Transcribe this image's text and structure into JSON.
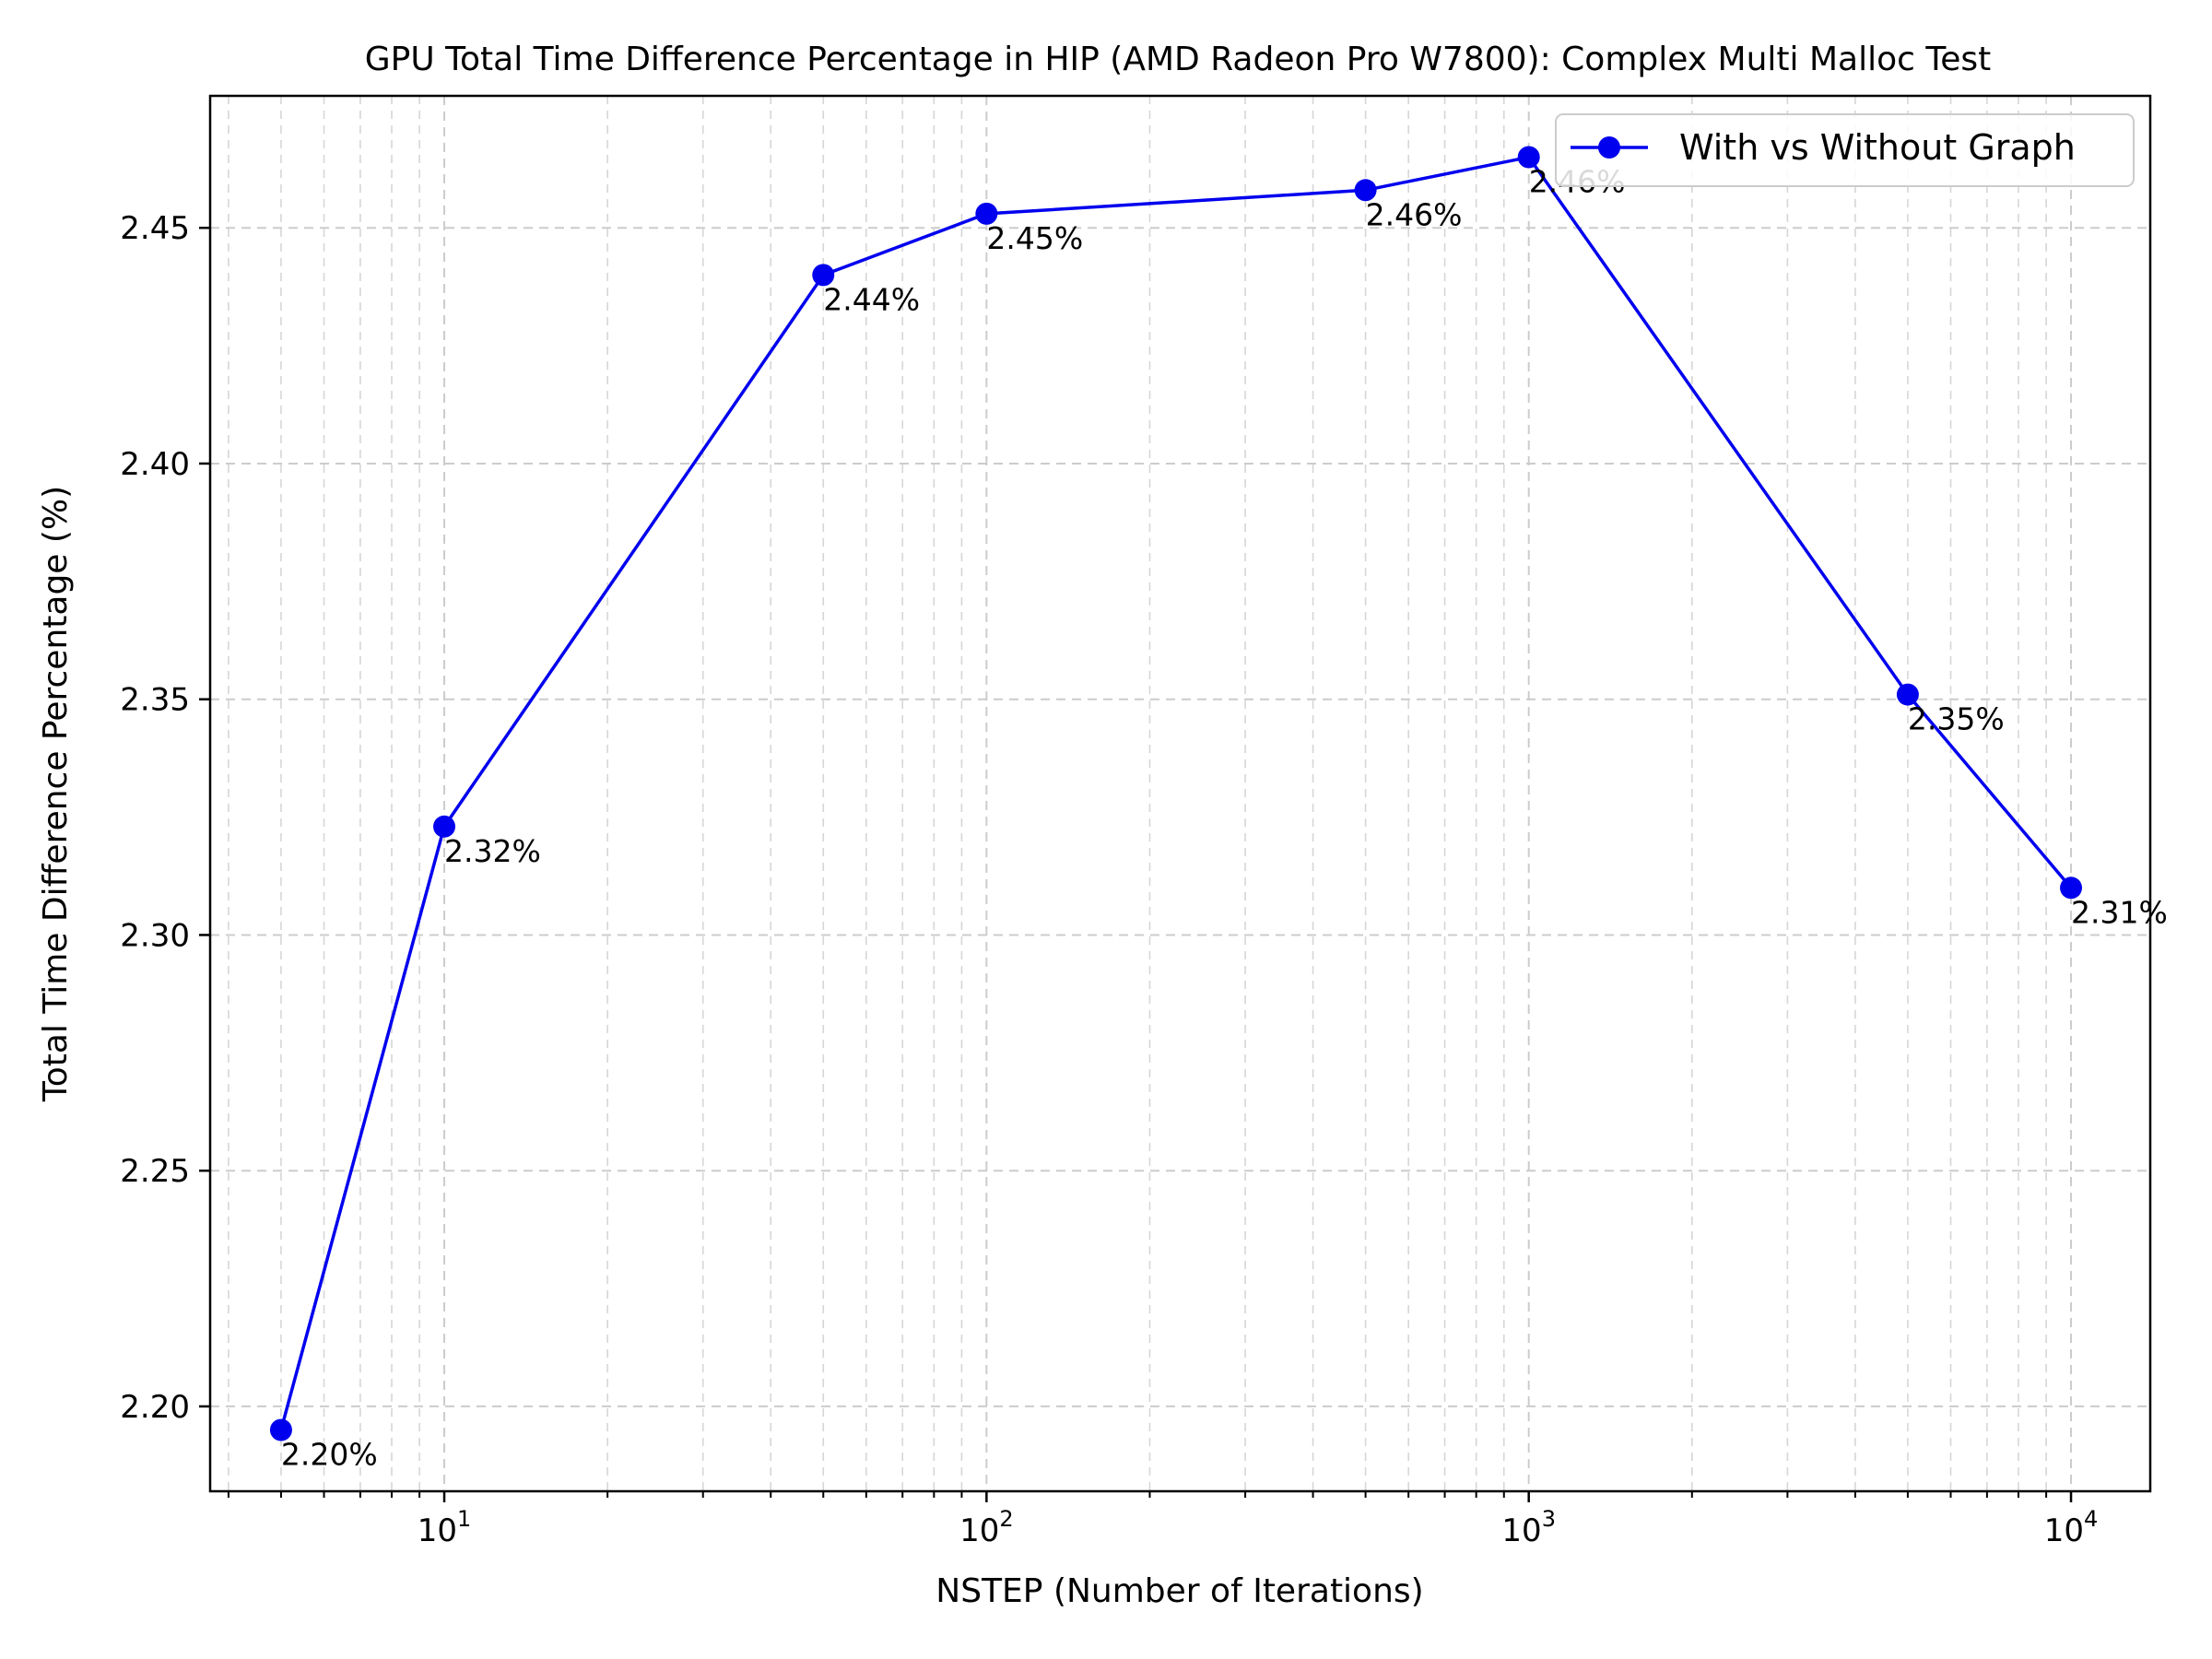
{
  "chart_data": {
    "type": "line",
    "title": "GPU Total Time Difference Percentage in HIP (AMD Radeon Pro W7800): Complex Multi Malloc Test",
    "xlabel": "NSTEP (Number of Iterations)",
    "ylabel": "Total Time Difference Percentage (%)",
    "x_scale": "log",
    "xlim": [
      3.7,
      14000
    ],
    "ylim": [
      2.182,
      2.478
    ],
    "grid": true,
    "legend_position": "top-right",
    "x_ticks": [
      {
        "value": 10,
        "base": "10",
        "exp": "1"
      },
      {
        "value": 100,
        "base": "10",
        "exp": "2"
      },
      {
        "value": 1000,
        "base": "10",
        "exp": "3"
      },
      {
        "value": 10000,
        "base": "10",
        "exp": "4"
      }
    ],
    "y_ticks": [
      "2.20",
      "2.25",
      "2.30",
      "2.35",
      "2.40",
      "2.45"
    ],
    "series": [
      {
        "name": "With vs Without Graph",
        "color": "#0000ee",
        "marker": "circle",
        "x": [
          5,
          10,
          50,
          100,
          500,
          1000,
          5000,
          10000
        ],
        "y": [
          2.195,
          2.323,
          2.44,
          2.453,
          2.458,
          2.465,
          2.351,
          2.31
        ],
        "labels": [
          "2.20%",
          "2.32%",
          "2.44%",
          "2.45%",
          "2.46%",
          "2.46%",
          "2.35%",
          "2.31%"
        ]
      }
    ]
  }
}
